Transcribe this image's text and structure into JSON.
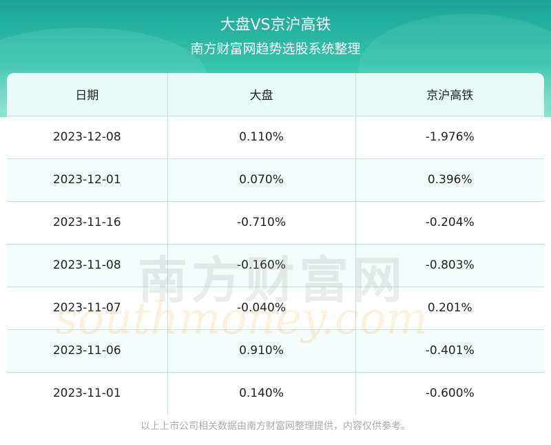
{
  "header": {
    "title": "大盘VS京沪高铁",
    "subtitle": "南方财富网趋势选股系统整理"
  },
  "table": {
    "columns": [
      "日期",
      "大盘",
      "京沪高铁"
    ],
    "rows": [
      {
        "date": "2023-12-08",
        "market": "0.110%",
        "stock": "-1.976%"
      },
      {
        "date": "2023-12-01",
        "market": "0.070%",
        "stock": "0.396%"
      },
      {
        "date": "2023-11-16",
        "market": "-0.710%",
        "stock": "-0.204%"
      },
      {
        "date": "2023-11-08",
        "market": "-0.160%",
        "stock": "-0.803%"
      },
      {
        "date": "2023-11-07",
        "market": "-0.040%",
        "stock": "0.201%"
      },
      {
        "date": "2023-11-06",
        "market": "0.910%",
        "stock": "-0.401%"
      },
      {
        "date": "2023-11-01",
        "market": "0.140%",
        "stock": "-0.600%"
      }
    ]
  },
  "watermark": {
    "cn": "南方财富网",
    "en": "southmoney.com"
  },
  "footer": {
    "text": "以上上市公司相关数据由南方财富网整理提供，内容仅供参考。"
  },
  "colors": {
    "header_top": "#1aa596",
    "header_bottom": "#8fe3cf",
    "grid_line": "#bfe3dc",
    "table_head_bg": "#e9fbf8"
  }
}
